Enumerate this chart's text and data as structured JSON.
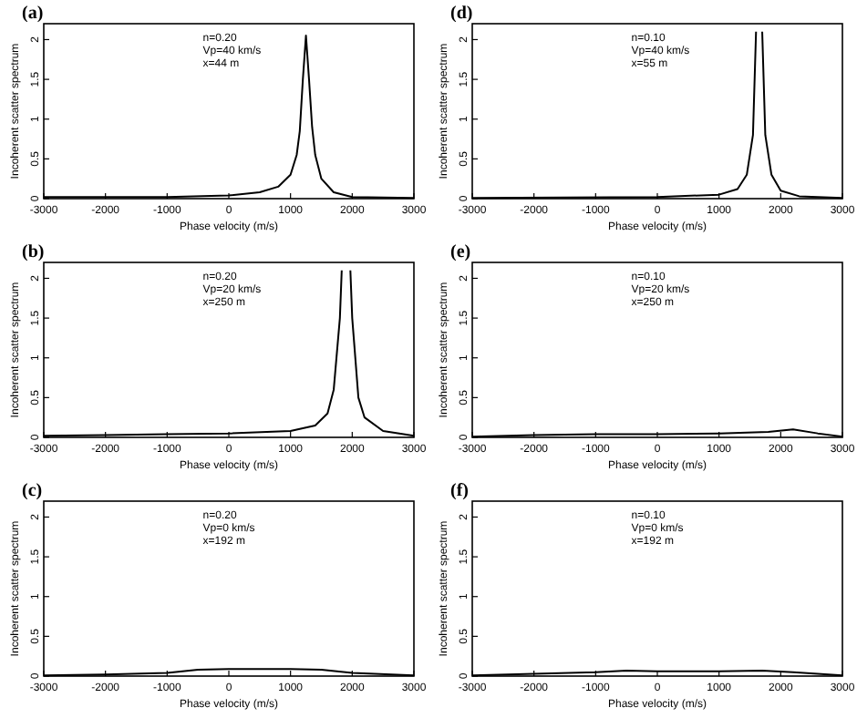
{
  "chart_data": [
    {
      "type": "line",
      "title": "(a)",
      "xlabel": "Phase velocity (m/s)",
      "ylabel": "Incoherent scatter spectrum",
      "annotations": [
        "n=0.20",
        "Vp=40 km/s",
        "x=44 m"
      ],
      "color": "#000000",
      "xlim": [
        -3000,
        3000
      ],
      "ylim": [
        0,
        2.2
      ],
      "xticks": [
        -3000,
        -2000,
        -1000,
        0,
        1000,
        2000,
        3000
      ],
      "yticks": [
        0,
        0.5,
        1,
        1.5,
        2
      ],
      "x": [
        -3000,
        -2000,
        -1000,
        0,
        500,
        800,
        1000,
        1100,
        1150,
        1200,
        1250,
        1300,
        1350,
        1400,
        1500,
        1700,
        2000,
        3000
      ],
      "values": [
        0.02,
        0.02,
        0.02,
        0.04,
        0.08,
        0.15,
        0.3,
        0.55,
        0.85,
        1.5,
        2.05,
        1.5,
        0.9,
        0.55,
        0.25,
        0.08,
        0.02,
        0.01
      ]
    },
    {
      "type": "line",
      "title": "(d)",
      "xlabel": "Phase velocity (m/s)",
      "ylabel": "Incoherent scatter spectrum",
      "annotations": [
        "n=0.10",
        "Vp=40 km/s",
        "x=55 m"
      ],
      "color": "#000000",
      "xlim": [
        -3000,
        3000
      ],
      "ylim": [
        0,
        2.2
      ],
      "xticks": [
        -3000,
        -2000,
        -1000,
        0,
        1000,
        2000,
        3000
      ],
      "yticks": [
        0,
        0.5,
        1,
        1.5,
        2
      ],
      "x": [
        -3000,
        0,
        1000,
        1300,
        1450,
        1550,
        1600,
        1650,
        1700,
        1750,
        1850,
        2000,
        2300,
        3000
      ],
      "values": [
        0.01,
        0.02,
        0.05,
        0.12,
        0.3,
        0.8,
        2.1,
        null,
        2.1,
        0.8,
        0.3,
        0.1,
        0.03,
        0.01
      ]
    },
    {
      "type": "line",
      "title": "(b)",
      "xlabel": "Phase velocity (m/s)",
      "ylabel": "Incoherent scatter spectrum",
      "annotations": [
        "n=0.20",
        "Vp=20 km/s",
        "x=250 m"
      ],
      "color": "#000000",
      "xlim": [
        -3000,
        3000
      ],
      "ylim": [
        0,
        2.2
      ],
      "xticks": [
        -3000,
        -2000,
        -1000,
        0,
        1000,
        2000,
        3000
      ],
      "yticks": [
        0,
        0.5,
        1,
        1.5,
        2
      ],
      "x": [
        -3000,
        -2000,
        -1000,
        0,
        1000,
        1400,
        1600,
        1700,
        1800,
        1830,
        1900,
        1970,
        2000,
        2100,
        2200,
        2500,
        3000
      ],
      "values": [
        0.02,
        0.03,
        0.04,
        0.05,
        0.08,
        0.15,
        0.3,
        0.6,
        1.5,
        2.1,
        null,
        2.1,
        1.5,
        0.5,
        0.25,
        0.08,
        0.02
      ]
    },
    {
      "type": "line",
      "title": "(e)",
      "xlabel": "Phase velocity (m/s)",
      "ylabel": "Incoherent scatter spectrum",
      "annotations": [
        "n=0.10",
        "Vp=20 km/s",
        "x=250 m"
      ],
      "color": "#000000",
      "xlim": [
        -3000,
        3000
      ],
      "ylim": [
        0,
        2.2
      ],
      "xticks": [
        -3000,
        -2000,
        -1000,
        0,
        1000,
        2000,
        3000
      ],
      "yticks": [
        0,
        0.5,
        1,
        1.5,
        2
      ],
      "x": [
        -3000,
        -2000,
        -1000,
        0,
        1000,
        1800,
        2200,
        2600,
        3000
      ],
      "values": [
        0.01,
        0.03,
        0.04,
        0.04,
        0.05,
        0.07,
        0.1,
        0.05,
        0.01
      ]
    },
    {
      "type": "line",
      "title": "(c)",
      "xlabel": "Phase velocity (m/s)",
      "ylabel": "Incoherent scatter spectrum",
      "annotations": [
        "n=0.20",
        "Vp=0 km/s",
        "x=192 m"
      ],
      "color": "#000000",
      "xlim": [
        -3000,
        3000
      ],
      "ylim": [
        0,
        2.2
      ],
      "xticks": [
        -3000,
        -2000,
        -1000,
        0,
        1000,
        2000,
        3000
      ],
      "yticks": [
        0,
        0.5,
        1,
        1.5,
        2
      ],
      "x": [
        -3000,
        -2000,
        -1000,
        -500,
        0,
        1000,
        1500,
        2000,
        3000
      ],
      "values": [
        0.01,
        0.02,
        0.04,
        0.08,
        0.09,
        0.09,
        0.08,
        0.04,
        0.01
      ]
    },
    {
      "type": "line",
      "title": "(f)",
      "xlabel": "Phase velocity (m/s)",
      "ylabel": "Incoherent scatter spectrum",
      "annotations": [
        "n=0.10",
        "Vp=0 km/s",
        "x=192 m"
      ],
      "color": "#000000",
      "xlim": [
        -3000,
        3000
      ],
      "ylim": [
        0,
        2.2
      ],
      "xticks": [
        -3000,
        -2000,
        -1000,
        0,
        1000,
        2000,
        3000
      ],
      "yticks": [
        0,
        0.5,
        1,
        1.5,
        2
      ],
      "x": [
        -3000,
        -2000,
        -1000,
        -500,
        0,
        1000,
        1700,
        2200,
        3000
      ],
      "values": [
        0.01,
        0.03,
        0.05,
        0.07,
        0.06,
        0.06,
        0.07,
        0.05,
        0.01
      ]
    }
  ]
}
